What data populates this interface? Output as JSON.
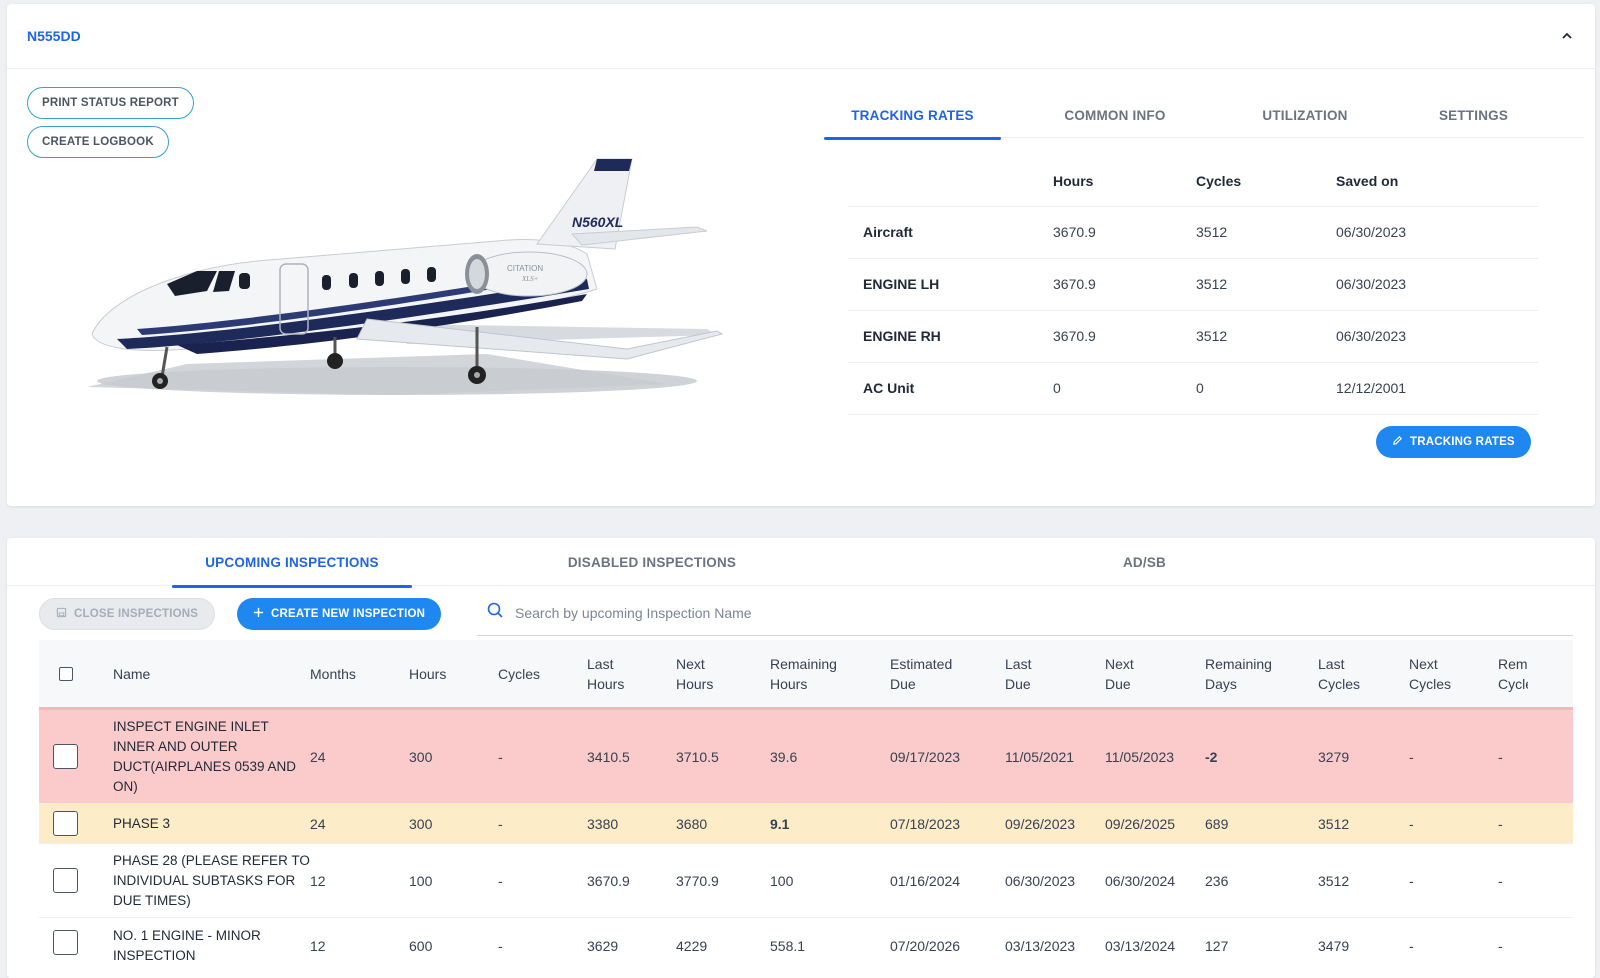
{
  "aircraft": {
    "tail_number": "N555DD",
    "actions": {
      "print_status_report": "PRINT STATUS REPORT",
      "create_logbook": "CREATE LOGBOOK"
    },
    "plane_livery": {
      "tail_reg": "N560XL",
      "engine_label": "CITATION",
      "engine_sub": "XLS+"
    }
  },
  "rates_tabs": [
    {
      "label": "TRACKING RATES",
      "active": true
    },
    {
      "label": "COMMON INFO",
      "active": false
    },
    {
      "label": "UTILIZATION",
      "active": false
    },
    {
      "label": "SETTINGS",
      "active": false
    }
  ],
  "rates_table": {
    "headers": [
      "",
      "Hours",
      "Cycles",
      "Saved on"
    ],
    "rows": [
      {
        "label": "Aircraft",
        "hours": "3670.9",
        "cycles": "3512",
        "saved_on": "06/30/2023"
      },
      {
        "label": "ENGINE LH",
        "hours": "3670.9",
        "cycles": "3512",
        "saved_on": "06/30/2023"
      },
      {
        "label": "ENGINE RH",
        "hours": "3670.9",
        "cycles": "3512",
        "saved_on": "06/30/2023"
      },
      {
        "label": "AC Unit",
        "hours": "0",
        "cycles": "0",
        "saved_on": "12/12/2001"
      }
    ],
    "edit_button": "TRACKING RATES"
  },
  "inspection_tabs": [
    {
      "label": "UPCOMING INSPECTIONS",
      "active": true
    },
    {
      "label": "DISABLED INSPECTIONS",
      "active": false
    },
    {
      "label": "AD/SB",
      "active": false
    }
  ],
  "toolbar": {
    "close_inspections": "CLOSE INSPECTIONS",
    "create_new_inspection": "CREATE NEW INSPECTION",
    "search_placeholder": "Search by upcoming Inspection Name"
  },
  "grid": {
    "headers": {
      "name": "Name",
      "months": "Months",
      "hours": "Hours",
      "cycles": "Cycles",
      "last_hours": [
        "Last",
        "Hours"
      ],
      "next_hours": [
        "Next",
        "Hours"
      ],
      "remaining_hours": [
        "Remaining",
        "Hours"
      ],
      "estimated_due": [
        "Estimated",
        "Due"
      ],
      "last_due": [
        "Last",
        "Due"
      ],
      "next_due": [
        "Next",
        "Due"
      ],
      "remaining_days": [
        "Remaining",
        "Days"
      ],
      "last_cycles": [
        "Last",
        "Cycles"
      ],
      "next_cycles": [
        "Next",
        "Cycles"
      ],
      "remaining_cycles": [
        "Rem",
        "Cycle"
      ]
    },
    "rows": [
      {
        "status": "overdue",
        "name": "INSPECT ENGINE INLET INNER AND OUTER DUCT(AIRPLANES 0539 AND ON)",
        "months": "24",
        "hours": "300",
        "cycles": "-",
        "last_hours": "3410.5",
        "next_hours": "3710.5",
        "remaining_hours": "39.6",
        "estimated_due": "09/17/2023",
        "last_due": "11/05/2021",
        "next_due": "11/05/2023",
        "remaining_days": "-2",
        "last_cycles": "3279",
        "next_cycles": "-",
        "remaining_cycles": "-"
      },
      {
        "status": "warning",
        "name": "PHASE 3",
        "months": "24",
        "hours": "300",
        "cycles": "-",
        "last_hours": "3380",
        "next_hours": "3680",
        "remaining_hours": "9.1",
        "estimated_due": "07/18/2023",
        "last_due": "09/26/2023",
        "next_due": "09/26/2025",
        "remaining_days": "689",
        "last_cycles": "3512",
        "next_cycles": "-",
        "remaining_cycles": "-"
      },
      {
        "status": "ok",
        "name": "PHASE 28 (PLEASE REFER TO INDIVIDUAL SUBTASKS FOR DUE TIMES)",
        "months": "12",
        "hours": "100",
        "cycles": "-",
        "last_hours": "3670.9",
        "next_hours": "3770.9",
        "remaining_hours": "100",
        "estimated_due": "01/16/2024",
        "last_due": "06/30/2023",
        "next_due": "06/30/2024",
        "remaining_days": "236",
        "last_cycles": "3512",
        "next_cycles": "-",
        "remaining_cycles": "-"
      },
      {
        "status": "ok",
        "name": "NO. 1 ENGINE - MINOR INSPECTION",
        "months": "12",
        "hours": "600",
        "cycles": "-",
        "last_hours": "3629",
        "next_hours": "4229",
        "remaining_hours": "558.1",
        "estimated_due": "07/20/2026",
        "last_due": "03/13/2023",
        "next_due": "03/13/2024",
        "remaining_days": "127",
        "last_cycles": "3479",
        "next_cycles": "-",
        "remaining_cycles": "-"
      }
    ]
  },
  "colors": {
    "accent": "#1e64e6",
    "primary_button": "#1e88f0",
    "overdue_row": "#fbcaca",
    "warning_row": "#fdecc8"
  }
}
